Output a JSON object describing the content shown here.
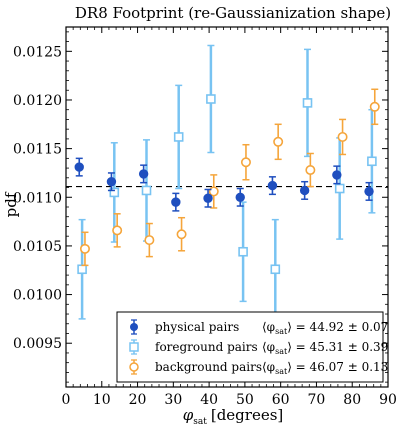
{
  "chart_data": {
    "type": "scatter",
    "title": "DR8 Footprint (re-Gaussianization shape)",
    "xlabel": "φ",
    "xlabel_sub": "sat",
    "xlabel_unit": "[degrees]",
    "ylabel": "pdf",
    "xlim": [
      0,
      90
    ],
    "ylim": [
      0.00905,
      0.01275
    ],
    "xticks": [
      0,
      10,
      20,
      30,
      40,
      50,
      60,
      70,
      80,
      90
    ],
    "xtick_labels": [
      "0",
      "10",
      "20",
      "30",
      "40",
      "50",
      "60",
      "70",
      "80",
      "90"
    ],
    "yticks": [
      0.0095,
      0.01,
      0.0105,
      0.011,
      0.0115,
      0.012,
      0.0125
    ],
    "ytick_labels": [
      "0.0095",
      "0.0100",
      "0.0105",
      "0.0110",
      "0.0115",
      "0.0120",
      "0.0125"
    ],
    "reference_line": {
      "y": 0.01111,
      "style": "dashed",
      "color": "#000000"
    },
    "legend_position": "bottom-right",
    "series": [
      {
        "name": "physical pairs",
        "stat": {
          "mean_sub": "sat",
          "value": "= 44.92 ± 0.07"
        },
        "color": "#1f4fbf",
        "marker": "filled-circle",
        "x": [
          4.5,
          13.5,
          22.5,
          31.5,
          40.5,
          49.5,
          58.5,
          67.5,
          76.5,
          85.5
        ],
        "y": [
          0.01131,
          0.01116,
          0.01124,
          0.01095,
          0.01099,
          0.011,
          0.01112,
          0.01107,
          0.01123,
          0.01106
        ],
        "err": [
          9e-05,
          9e-05,
          9e-05,
          9e-05,
          9e-05,
          9e-05,
          9e-05,
          9e-05,
          9e-05,
          9e-05
        ]
      },
      {
        "name": "foreground pairs",
        "stat": {
          "mean_sub": "sat",
          "value": "= 45.31 ± 0.39"
        },
        "color": "#78c3f2",
        "marker": "open-square",
        "x": [
          4.5,
          13.5,
          22.5,
          31.5,
          40.5,
          49.5,
          58.5,
          67.5,
          76.5,
          85.5
        ],
        "y": [
          0.01026,
          0.01105,
          0.01107,
          0.01162,
          0.01201,
          0.01044,
          0.01026,
          0.01197,
          0.01109,
          0.01137
        ],
        "err": [
          0.00051,
          0.00051,
          0.00052,
          0.00053,
          0.00055,
          0.00051,
          0.00051,
          0.00055,
          0.00052,
          0.00053
        ]
      },
      {
        "name": "background pairs",
        "stat": {
          "mean_sub": "sat",
          "value": "= 46.07 ± 0.13"
        },
        "color": "#f5a53b",
        "marker": "open-circle",
        "x": [
          4.5,
          13.5,
          22.5,
          31.5,
          40.5,
          49.5,
          58.5,
          67.5,
          76.5,
          85.5
        ],
        "y": [
          0.01047,
          0.01066,
          0.01056,
          0.01062,
          0.01106,
          0.01136,
          0.01157,
          0.01128,
          0.01162,
          0.01193
        ],
        "err": [
          0.00017,
          0.00017,
          0.00017,
          0.00017,
          0.00017,
          0.00018,
          0.00018,
          0.00017,
          0.00018,
          0.00018
        ]
      }
    ]
  }
}
